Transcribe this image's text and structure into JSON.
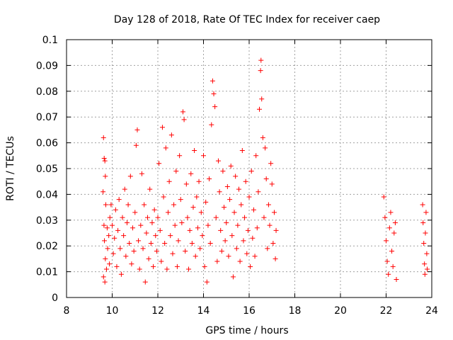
{
  "chart_data": {
    "type": "scatter",
    "title": "Day 128 of 2018, Rate Of TEC Index for receiver caep",
    "xlabel": "GPS time / hours",
    "ylabel": "ROTI / TECUs",
    "xlim": [
      8,
      24
    ],
    "ylim": [
      0,
      0.1
    ],
    "xticks": [
      8,
      10,
      12,
      14,
      16,
      18,
      20,
      22,
      24
    ],
    "xtick_labels": [
      "8",
      "10",
      "12",
      "14",
      "16",
      "18",
      "20",
      "22",
      "24"
    ],
    "yticks": [
      0,
      0.01,
      0.02,
      0.03,
      0.04,
      0.05,
      0.06,
      0.07,
      0.08,
      0.09,
      0.1
    ],
    "ytick_labels": [
      "0",
      "0.01",
      "0.02",
      "0.03",
      "0.04",
      "0.05",
      "0.06",
      "0.07",
      "0.08",
      "0.09",
      "0.1"
    ],
    "grid": true,
    "marker": "+",
    "series": [
      {
        "name": "ROTI",
        "color": "#ff0000",
        "points": [
          [
            9.62,
            0.062
          ],
          [
            9.65,
            0.054
          ],
          [
            9.68,
            0.053
          ],
          [
            9.7,
            0.047
          ],
          [
            9.6,
            0.041
          ],
          [
            9.72,
            0.036
          ],
          [
            9.64,
            0.028
          ],
          [
            9.66,
            0.022
          ],
          [
            9.7,
            0.015
          ],
          [
            9.62,
            0.008
          ],
          [
            9.68,
            0.006
          ],
          [
            9.75,
            0.011
          ],
          [
            9.8,
            0.019
          ],
          [
            9.85,
            0.024
          ],
          [
            9.9,
            0.031
          ],
          [
            9.95,
            0.036
          ],
          [
            9.78,
            0.027
          ],
          [
            9.88,
            0.013
          ],
          [
            10.0,
            0.028
          ],
          [
            10.05,
            0.017
          ],
          [
            10.1,
            0.023
          ],
          [
            10.15,
            0.034
          ],
          [
            10.2,
            0.012
          ],
          [
            10.25,
            0.026
          ],
          [
            10.3,
            0.038
          ],
          [
            10.35,
            0.019
          ],
          [
            10.4,
            0.009
          ],
          [
            10.45,
            0.031
          ],
          [
            10.5,
            0.024
          ],
          [
            10.55,
            0.042
          ],
          [
            10.6,
            0.016
          ],
          [
            10.65,
            0.029
          ],
          [
            10.7,
            0.036
          ],
          [
            10.75,
            0.021
          ],
          [
            10.8,
            0.047
          ],
          [
            10.85,
            0.013
          ],
          [
            10.9,
            0.027
          ],
          [
            10.95,
            0.018
          ],
          [
            11.0,
            0.033
          ],
          [
            11.05,
            0.059
          ],
          [
            11.1,
            0.065
          ],
          [
            11.15,
            0.022
          ],
          [
            11.2,
            0.011
          ],
          [
            11.25,
            0.028
          ],
          [
            11.3,
            0.048
          ],
          [
            11.35,
            0.019
          ],
          [
            11.4,
            0.036
          ],
          [
            11.45,
            0.006
          ],
          [
            11.5,
            0.025
          ],
          [
            11.55,
            0.031
          ],
          [
            11.6,
            0.015
          ],
          [
            11.65,
            0.042
          ],
          [
            11.7,
            0.021
          ],
          [
            11.75,
            0.029
          ],
          [
            11.8,
            0.012
          ],
          [
            11.85,
            0.034
          ],
          [
            11.9,
            0.024
          ],
          [
            11.95,
            0.018
          ],
          [
            12.0,
            0.031
          ],
          [
            12.05,
            0.052
          ],
          [
            12.1,
            0.026
          ],
          [
            12.15,
            0.014
          ],
          [
            12.2,
            0.066
          ],
          [
            12.25,
            0.039
          ],
          [
            12.3,
            0.021
          ],
          [
            12.35,
            0.058
          ],
          [
            12.4,
            0.011
          ],
          [
            12.45,
            0.033
          ],
          [
            12.5,
            0.045
          ],
          [
            12.55,
            0.024
          ],
          [
            12.6,
            0.063
          ],
          [
            12.65,
            0.017
          ],
          [
            12.7,
            0.036
          ],
          [
            12.75,
            0.028
          ],
          [
            12.8,
            0.049
          ],
          [
            12.85,
            0.012
          ],
          [
            12.9,
            0.022
          ],
          [
            12.95,
            0.055
          ],
          [
            13.0,
            0.038
          ],
          [
            13.05,
            0.029
          ],
          [
            13.1,
            0.072
          ],
          [
            13.15,
            0.069
          ],
          [
            13.2,
            0.018
          ],
          [
            13.25,
            0.044
          ],
          [
            13.3,
            0.031
          ],
          [
            13.35,
            0.011
          ],
          [
            13.4,
            0.026
          ],
          [
            13.45,
            0.048
          ],
          [
            13.5,
            0.021
          ],
          [
            13.55,
            0.035
          ],
          [
            13.6,
            0.057
          ],
          [
            13.65,
            0.016
          ],
          [
            13.7,
            0.039
          ],
          [
            13.75,
            0.027
          ],
          [
            13.8,
            0.045
          ],
          [
            13.85,
            0.019
          ],
          [
            13.9,
            0.033
          ],
          [
            13.95,
            0.024
          ],
          [
            14.0,
            0.055
          ],
          [
            14.05,
            0.012
          ],
          [
            14.1,
            0.037
          ],
          [
            14.15,
            0.006
          ],
          [
            14.2,
            0.028
          ],
          [
            14.25,
            0.046
          ],
          [
            14.3,
            0.021
          ],
          [
            14.35,
            0.067
          ],
          [
            14.4,
            0.084
          ],
          [
            14.45,
            0.079
          ],
          [
            14.5,
            0.074
          ],
          [
            14.55,
            0.031
          ],
          [
            14.6,
            0.014
          ],
          [
            14.65,
            0.053
          ],
          [
            14.7,
            0.041
          ],
          [
            14.75,
            0.026
          ],
          [
            14.8,
            0.018
          ],
          [
            14.85,
            0.049
          ],
          [
            14.9,
            0.035
          ],
          [
            14.95,
            0.022
          ],
          [
            15.0,
            0.029
          ],
          [
            15.05,
            0.043
          ],
          [
            15.1,
            0.016
          ],
          [
            15.15,
            0.038
          ],
          [
            15.2,
            0.051
          ],
          [
            15.25,
            0.024
          ],
          [
            15.3,
            0.008
          ],
          [
            15.35,
            0.033
          ],
          [
            15.4,
            0.047
          ],
          [
            15.45,
            0.019
          ],
          [
            15.5,
            0.028
          ],
          [
            15.55,
            0.042
          ],
          [
            15.6,
            0.014
          ],
          [
            15.65,
            0.036
          ],
          [
            15.7,
            0.057
          ],
          [
            15.75,
            0.022
          ],
          [
            15.8,
            0.031
          ],
          [
            15.85,
            0.045
          ],
          [
            15.9,
            0.017
          ],
          [
            15.95,
            0.026
          ],
          [
            16.0,
            0.039
          ],
          [
            16.05,
            0.012
          ],
          [
            16.1,
            0.049
          ],
          [
            16.15,
            0.023
          ],
          [
            16.2,
            0.034
          ],
          [
            16.25,
            0.016
          ],
          [
            16.3,
            0.055
          ],
          [
            16.35,
            0.027
          ],
          [
            16.4,
            0.041
          ],
          [
            16.45,
            0.073
          ],
          [
            16.5,
            0.088
          ],
          [
            16.52,
            0.092
          ],
          [
            16.55,
            0.077
          ],
          [
            16.6,
            0.062
          ],
          [
            16.65,
            0.031
          ],
          [
            16.7,
            0.058
          ],
          [
            16.75,
            0.046
          ],
          [
            16.8,
            0.019
          ],
          [
            16.85,
            0.036
          ],
          [
            16.9,
            0.028
          ],
          [
            16.95,
            0.052
          ],
          [
            17.0,
            0.044
          ],
          [
            17.05,
            0.021
          ],
          [
            17.1,
            0.033
          ],
          [
            17.15,
            0.015
          ],
          [
            17.18,
            0.026
          ],
          [
            21.9,
            0.039
          ],
          [
            21.95,
            0.031
          ],
          [
            22.0,
            0.022
          ],
          [
            22.05,
            0.014
          ],
          [
            22.1,
            0.009
          ],
          [
            22.15,
            0.027
          ],
          [
            22.2,
            0.033
          ],
          [
            22.25,
            0.018
          ],
          [
            22.3,
            0.012
          ],
          [
            22.35,
            0.025
          ],
          [
            22.4,
            0.029
          ],
          [
            22.45,
            0.007
          ],
          [
            23.6,
            0.036
          ],
          [
            23.62,
            0.029
          ],
          [
            23.65,
            0.021
          ],
          [
            23.68,
            0.013
          ],
          [
            23.7,
            0.009
          ],
          [
            23.72,
            0.025
          ],
          [
            23.75,
            0.033
          ],
          [
            23.78,
            0.017
          ],
          [
            23.8,
            0.011
          ]
        ]
      }
    ]
  }
}
